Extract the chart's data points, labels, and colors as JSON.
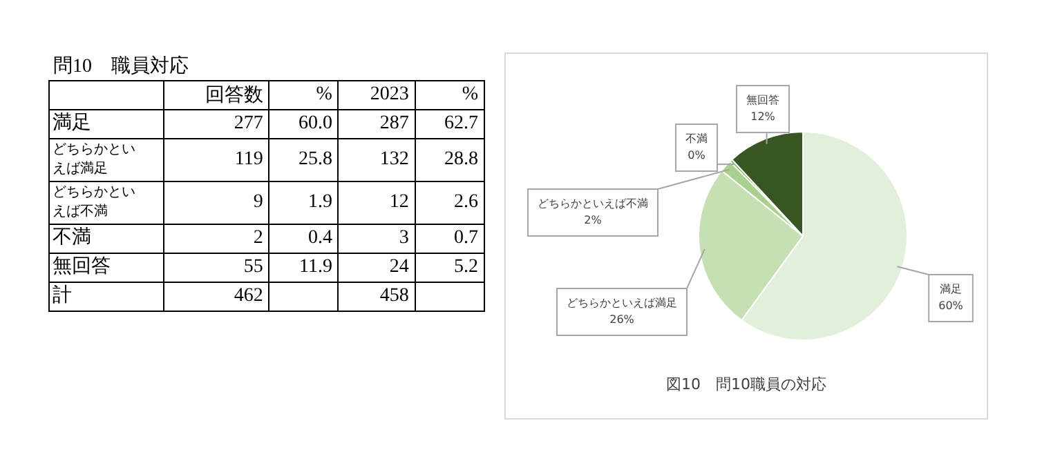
{
  "chart_data": [
    {
      "type": "other",
      "title": "問10　職員対応",
      "categories": [
        "回答数",
        "%",
        "2023",
        "%"
      ],
      "y_categories": [
        "満足",
        "どちらかといえば満足",
        "どちらかといえば不満",
        "不満",
        "無回答",
        "計"
      ],
      "cell_labels": [
        [
          "277",
          "60.0",
          "287",
          "62.7"
        ],
        [
          "119",
          "25.8",
          "132",
          "28.8"
        ],
        [
          "9",
          "1.9",
          "12",
          "2.6"
        ],
        [
          "2",
          "0.4",
          "3",
          "0.7"
        ],
        [
          "55",
          "11.9",
          "24",
          "5.2"
        ],
        [
          "462",
          null,
          "458",
          null
        ]
      ]
    },
    {
      "type": "pie",
      "title": "図10　問10職員の対応",
      "categories": [
        "満足",
        "どちらかといえば満足",
        "どちらかといえば不満",
        "不満",
        "無回答"
      ],
      "values": [
        60.0,
        25.8,
        1.9,
        0.4,
        11.9
      ],
      "value_labels": [
        "60%",
        "26%",
        "2%",
        "0%",
        "12%"
      ],
      "colors": [
        "#e2efda",
        "#c6e0b4",
        "#a9d08e",
        "#70ad47",
        "#375623"
      ],
      "legend": false
    }
  ]
}
